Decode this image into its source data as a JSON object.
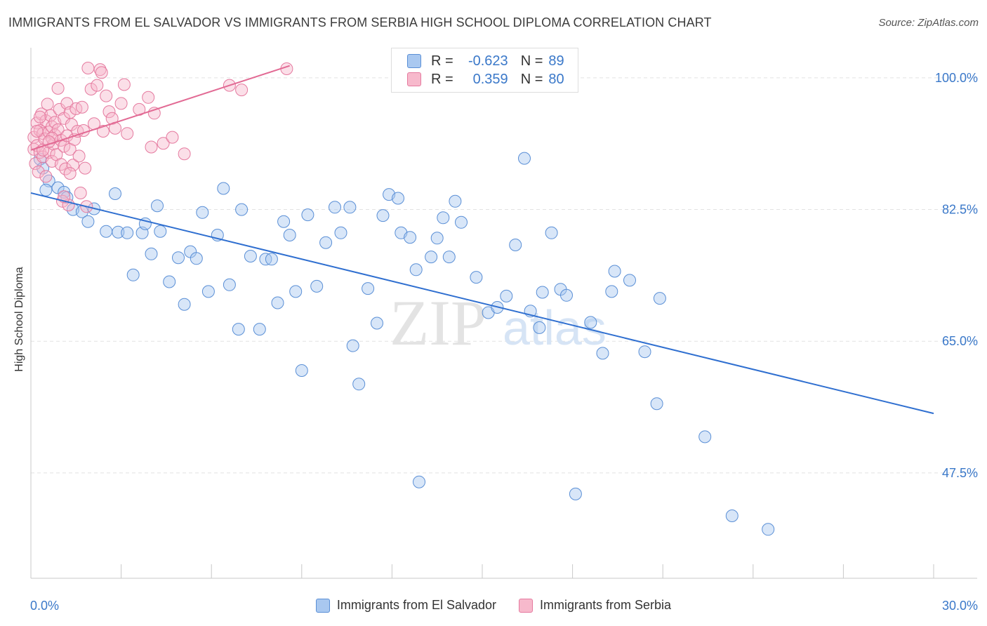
{
  "title": "IMMIGRANTS FROM EL SALVADOR VS IMMIGRANTS FROM SERBIA HIGH SCHOOL DIPLOMA CORRELATION CHART",
  "source": "Source: ZipAtlas.com",
  "watermark": {
    "zip": "ZIP",
    "atlas": "atlas"
  },
  "legend": {
    "r_label": "R =",
    "n_label": "N =",
    "rows": [
      {
        "r": "-0.623",
        "n": "89",
        "color": "#a9c8f0",
        "stroke": "#5a8fd6"
      },
      {
        "r": "0.359",
        "n": "80",
        "color": "#f7b9cc",
        "stroke": "#e57a9f"
      }
    ]
  },
  "chart_data": {
    "type": "scatter",
    "title": "IMMIGRANTS FROM EL SALVADOR VS IMMIGRANTS FROM SERBIA HIGH SCHOOL DIPLOMA CORRELATION CHART",
    "xlabel": "",
    "ylabel": "High School Diploma",
    "xlim": [
      0,
      30
    ],
    "ylim": [
      33.5,
      104
    ],
    "x_tick_labels": [
      "0.0%",
      "30.0%"
    ],
    "y_ticks": [
      {
        "value": 100,
        "label": "100.0%"
      },
      {
        "value": 82.5,
        "label": "82.5%"
      },
      {
        "value": 65,
        "label": "65.0%"
      },
      {
        "value": 47.5,
        "label": "47.5%"
      }
    ],
    "grid": true,
    "legend_position": "top-center",
    "series": [
      {
        "name": "Immigrants from El Salvador",
        "color": "#a9c8f0",
        "stroke": "#5a8fd6",
        "trend": {
          "x": [
            0,
            30
          ],
          "y": [
            84.7,
            55.4
          ],
          "color": "#2f6fd0"
        },
        "points": [
          [
            0.3,
            89.2
          ],
          [
            0.4,
            88.0
          ],
          [
            0.6,
            86.3
          ],
          [
            0.9,
            85.4
          ],
          [
            1.1,
            84.8
          ],
          [
            1.2,
            84.1
          ],
          [
            1.4,
            82.5
          ],
          [
            1.7,
            82.2
          ],
          [
            1.9,
            80.9
          ],
          [
            2.1,
            82.6
          ],
          [
            2.5,
            79.6
          ],
          [
            2.8,
            84.6
          ],
          [
            2.9,
            79.5
          ],
          [
            3.2,
            79.4
          ],
          [
            3.4,
            73.8
          ],
          [
            3.7,
            79.4
          ],
          [
            3.8,
            80.6
          ],
          [
            4.0,
            76.6
          ],
          [
            4.2,
            83.0
          ],
          [
            4.3,
            79.6
          ],
          [
            4.6,
            72.9
          ],
          [
            4.9,
            76.1
          ],
          [
            5.1,
            69.9
          ],
          [
            5.3,
            76.9
          ],
          [
            5.5,
            76.0
          ],
          [
            5.7,
            82.1
          ],
          [
            5.9,
            71.6
          ],
          [
            6.2,
            79.1
          ],
          [
            6.4,
            85.3
          ],
          [
            6.6,
            72.5
          ],
          [
            6.9,
            66.6
          ],
          [
            7.0,
            82.5
          ],
          [
            7.3,
            76.3
          ],
          [
            7.6,
            66.6
          ],
          [
            7.8,
            75.9
          ],
          [
            8.0,
            75.9
          ],
          [
            8.2,
            70.1
          ],
          [
            8.4,
            80.9
          ],
          [
            8.6,
            79.1
          ],
          [
            8.8,
            71.6
          ],
          [
            9.0,
            61.1
          ],
          [
            9.2,
            81.8
          ],
          [
            9.5,
            72.3
          ],
          [
            9.8,
            78.1
          ],
          [
            10.1,
            82.8
          ],
          [
            10.3,
            79.4
          ],
          [
            10.6,
            82.8
          ],
          [
            10.7,
            64.4
          ],
          [
            10.9,
            59.3
          ],
          [
            11.2,
            72.0
          ],
          [
            11.5,
            67.4
          ],
          [
            11.7,
            81.7
          ],
          [
            11.9,
            84.5
          ],
          [
            12.2,
            84.0
          ],
          [
            12.3,
            79.4
          ],
          [
            12.6,
            78.8
          ],
          [
            12.8,
            74.5
          ],
          [
            12.9,
            46.3
          ],
          [
            13.3,
            76.2
          ],
          [
            13.5,
            78.7
          ],
          [
            13.7,
            81.4
          ],
          [
            13.9,
            76.2
          ],
          [
            14.1,
            83.6
          ],
          [
            14.3,
            80.8
          ],
          [
            14.8,
            73.5
          ],
          [
            15.2,
            68.8
          ],
          [
            15.5,
            69.5
          ],
          [
            15.8,
            71.0
          ],
          [
            16.1,
            77.8
          ],
          [
            16.4,
            89.3
          ],
          [
            16.6,
            69.0
          ],
          [
            16.9,
            66.8
          ],
          [
            17.0,
            71.5
          ],
          [
            17.3,
            79.4
          ],
          [
            17.6,
            71.9
          ],
          [
            17.8,
            71.1
          ],
          [
            18.1,
            44.7
          ],
          [
            18.6,
            67.5
          ],
          [
            19.0,
            63.4
          ],
          [
            19.3,
            71.6
          ],
          [
            19.4,
            74.3
          ],
          [
            19.9,
            73.1
          ],
          [
            20.4,
            63.6
          ],
          [
            20.8,
            56.7
          ],
          [
            20.9,
            70.7
          ],
          [
            22.4,
            52.3
          ],
          [
            23.3,
            41.8
          ],
          [
            24.5,
            40.0
          ],
          [
            0.5,
            85.1
          ]
        ]
      },
      {
        "name": "Immigrants from Serbia",
        "color": "#f7b9cc",
        "stroke": "#e57a9f",
        "trend": {
          "x": [
            0,
            8.6
          ],
          "y": [
            90.4,
            101.6
          ],
          "color": "#e26a94"
        },
        "points": [
          [
            0.1,
            90.5
          ],
          [
            0.1,
            92.1
          ],
          [
            0.15,
            88.6
          ],
          [
            0.2,
            94.0
          ],
          [
            0.2,
            91.0
          ],
          [
            0.25,
            87.5
          ],
          [
            0.3,
            93.0
          ],
          [
            0.3,
            90.1
          ],
          [
            0.35,
            95.2
          ],
          [
            0.4,
            92.6
          ],
          [
            0.4,
            89.5
          ],
          [
            0.45,
            91.9
          ],
          [
            0.5,
            94.3
          ],
          [
            0.5,
            86.9
          ],
          [
            0.55,
            96.5
          ],
          [
            0.6,
            92.8
          ],
          [
            0.6,
            90.1
          ],
          [
            0.65,
            95.0
          ],
          [
            0.7,
            93.5
          ],
          [
            0.7,
            88.9
          ],
          [
            0.75,
            91.2
          ],
          [
            0.8,
            94.1
          ],
          [
            0.8,
            92.4
          ],
          [
            0.85,
            89.8
          ],
          [
            0.9,
            93.1
          ],
          [
            0.9,
            98.6
          ],
          [
            0.95,
            95.8
          ],
          [
            1.0,
            91.7
          ],
          [
            1.0,
            88.5
          ],
          [
            1.05,
            83.6
          ],
          [
            1.1,
            94.6
          ],
          [
            1.1,
            90.9
          ],
          [
            1.15,
            87.9
          ],
          [
            1.2,
            96.6
          ],
          [
            1.2,
            92.3
          ],
          [
            1.25,
            83.1
          ],
          [
            1.3,
            95.4
          ],
          [
            1.3,
            90.5
          ],
          [
            1.35,
            93.8
          ],
          [
            1.4,
            88.4
          ],
          [
            1.45,
            91.8
          ],
          [
            1.5,
            95.9
          ],
          [
            1.55,
            92.9
          ],
          [
            1.6,
            89.6
          ],
          [
            1.65,
            84.7
          ],
          [
            1.7,
            96.1
          ],
          [
            1.75,
            93.0
          ],
          [
            1.8,
            88.0
          ],
          [
            1.85,
            82.9
          ],
          [
            1.9,
            101.3
          ],
          [
            2.0,
            98.5
          ],
          [
            2.1,
            93.9
          ],
          [
            2.2,
            99.0
          ],
          [
            2.3,
            101.1
          ],
          [
            2.35,
            100.7
          ],
          [
            2.4,
            92.9
          ],
          [
            2.5,
            97.6
          ],
          [
            2.6,
            95.5
          ],
          [
            2.7,
            94.6
          ],
          [
            2.8,
            93.3
          ],
          [
            3.0,
            96.6
          ],
          [
            3.1,
            99.1
          ],
          [
            3.2,
            92.6
          ],
          [
            3.6,
            95.8
          ],
          [
            3.9,
            97.4
          ],
          [
            4.0,
            90.8
          ],
          [
            4.1,
            95.3
          ],
          [
            4.4,
            91.3
          ],
          [
            4.7,
            92.1
          ],
          [
            5.1,
            89.9
          ],
          [
            6.6,
            99.0
          ],
          [
            7.0,
            98.4
          ],
          [
            8.5,
            101.2
          ],
          [
            0.2,
            92.9
          ],
          [
            0.3,
            94.8
          ],
          [
            0.4,
            90.4
          ],
          [
            1.1,
            84.2
          ],
          [
            1.3,
            87.3
          ],
          [
            0.7,
            92.0
          ],
          [
            0.6,
            91.5
          ]
        ]
      }
    ]
  }
}
